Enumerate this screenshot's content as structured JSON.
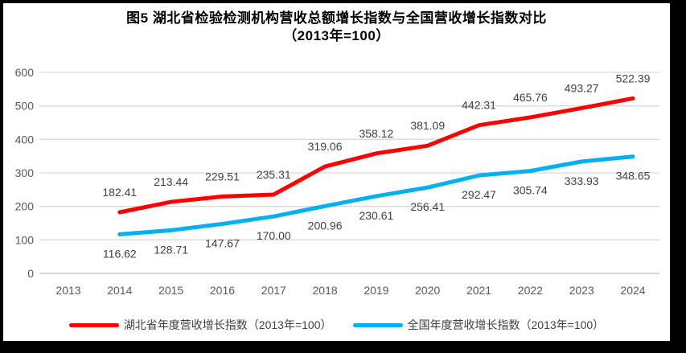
{
  "chart": {
    "title_line1": "图5 湖北省检验检测机构营收总额增长指数与全国营收增长指数对比",
    "title_line2": "（2013年=100）",
    "legend": [
      {
        "label": "湖北省年度营收增长指数（2013年=100）",
        "color": "#ff0000"
      },
      {
        "label": "全国年度营收增长指数（2013年=100）",
        "color": "#00b0f0"
      }
    ]
  },
  "chart_data": {
    "type": "line",
    "title": "图5 湖北省检验检测机构营收总额增长指数与全国营收增长指数对比（2013年=100）",
    "categories": [
      "2013",
      "2014",
      "2015",
      "2016",
      "2017",
      "2018",
      "2019",
      "2020",
      "2021",
      "2022",
      "2023",
      "2024"
    ],
    "series": [
      {
        "name": "湖北省年度营收增长指数（2013年=100）",
        "color": "#ff0000",
        "label_position": "above",
        "values": [
          null,
          182.41,
          213.44,
          229.51,
          235.31,
          319.06,
          358.12,
          381.09,
          442.31,
          465.76,
          493.27,
          522.39
        ],
        "labels": [
          "",
          "182.41",
          "213.44",
          "229.51",
          "235.31",
          "319.06",
          "358.12",
          "381.09",
          "442.31",
          "465.76",
          "493.27",
          "522.39"
        ]
      },
      {
        "name": "全国年度营收增长指数（2013年=100）",
        "color": "#00b0f0",
        "label_position": "below",
        "values": [
          null,
          116.62,
          128.71,
          147.67,
          170.0,
          200.96,
          230.61,
          256.41,
          292.47,
          305.74,
          333.93,
          348.65
        ],
        "labels": [
          "",
          "116.62",
          "128.71",
          "147.67",
          "170.00",
          "200.96",
          "230.61",
          "256.41",
          "292.47",
          "305.74",
          "333.93",
          "348.65"
        ]
      }
    ],
    "xlabel": "",
    "ylabel": "",
    "ylim": [
      0,
      600
    ],
    "ytick_step": 100,
    "ytick_labels": [
      "0",
      "100",
      "200",
      "300",
      "400",
      "500",
      "600"
    ],
    "grid": true,
    "legend_position": "bottom",
    "colors": {
      "gridline": "#d9d9d9",
      "axis_line": "#bfbfbf",
      "tick_text": "#595959",
      "data_label_text": "#404040",
      "title_text": "#000000"
    }
  }
}
